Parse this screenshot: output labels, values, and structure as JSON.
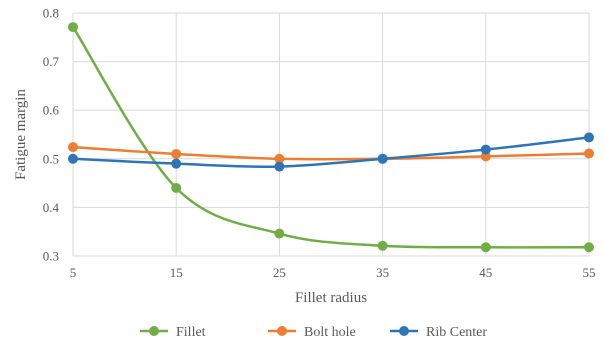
{
  "chart_data": {
    "type": "line",
    "title": "",
    "xlabel": "Fillet radius",
    "ylabel": "Fatigue margin",
    "x": [
      5,
      15,
      25,
      35,
      45,
      55
    ],
    "xticks": [
      "5",
      "15",
      "25",
      "35",
      "45",
      "55"
    ],
    "xlim": [
      5,
      55
    ],
    "ylim": [
      0.3,
      0.8
    ],
    "yticks": [
      "0.3",
      "0.4",
      "0.5",
      "0.6",
      "0.7",
      "0.8"
    ],
    "grid": true,
    "legend_position": "bottom",
    "smooth": true,
    "series": [
      {
        "name": "Fillet",
        "color": "#70ad47",
        "values": [
          0.771,
          0.44,
          0.346,
          0.321,
          0.318,
          0.318
        ]
      },
      {
        "name": "Bolt hole",
        "color": "#ed7d31",
        "values": [
          0.524,
          0.51,
          0.5,
          0.5,
          0.505,
          0.511
        ]
      },
      {
        "name": "Rib Center",
        "color": "#2e75b6",
        "values": [
          0.5,
          0.49,
          0.484,
          0.5,
          0.519,
          0.544
        ]
      }
    ]
  }
}
